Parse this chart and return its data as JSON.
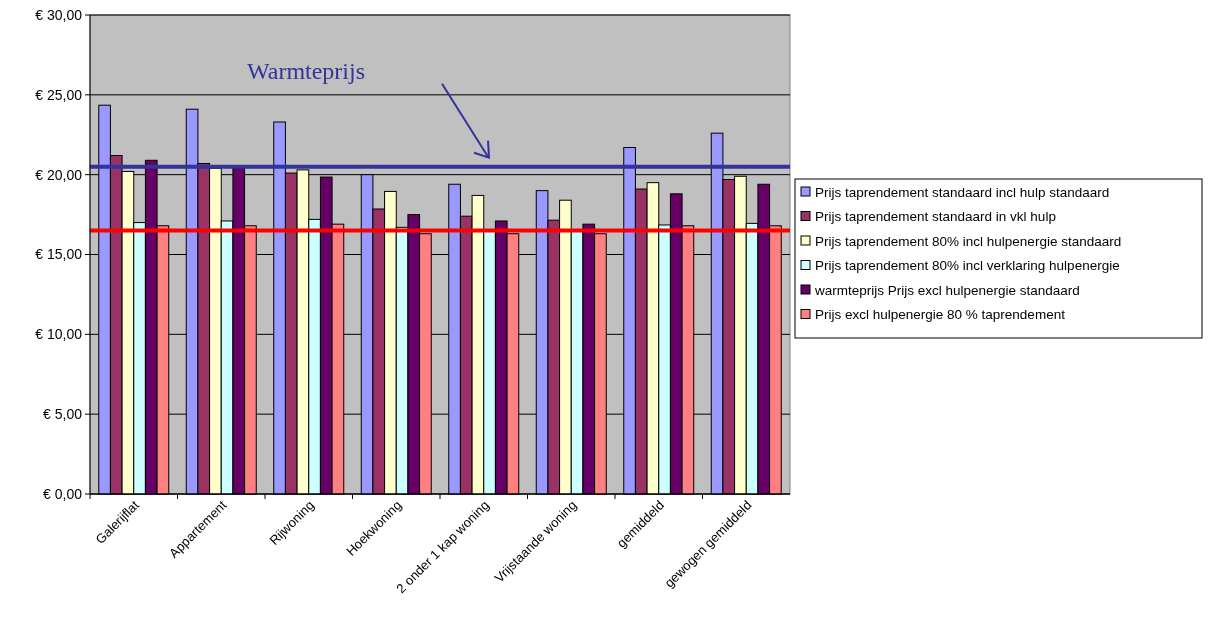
{
  "chart_data": {
    "type": "bar",
    "categories": [
      "Galerijflat",
      "Appartement",
      "Rijwoning",
      "Hoekwoning",
      "2 onder 1 kap woning",
      "Vrijstaande woning",
      "gemiddeld",
      "gewogen gemiddeld"
    ],
    "series": [
      {
        "name": "Prijs taprendement standaard incl hulp standaard",
        "color": "#9999ff",
        "values": [
          24.35,
          24.1,
          23.3,
          20.0,
          19.4,
          19.0,
          21.7,
          22.6
        ]
      },
      {
        "name": "Prijs taprendement standaard in vkl hulp",
        "color": "#993366",
        "values": [
          21.2,
          20.7,
          20.1,
          17.85,
          17.4,
          17.15,
          19.1,
          19.7
        ]
      },
      {
        "name": "Prijs taprendement 80% incl  hulpenergie standaard",
        "color": "#ffffcc",
        "values": [
          20.2,
          20.4,
          20.3,
          18.95,
          18.7,
          18.4,
          19.5,
          19.9
        ]
      },
      {
        "name": "Prijs taprendement 80% incl verklaring hulpenergie",
        "color": "#ccffff",
        "values": [
          17.0,
          17.1,
          17.2,
          16.7,
          16.5,
          16.5,
          16.85,
          16.95
        ]
      },
      {
        "name": "warmteprijs Prijs excl hulpenergie standaard",
        "color": "#660066",
        "values": [
          20.9,
          20.4,
          19.85,
          17.5,
          17.1,
          16.9,
          18.8,
          19.4
        ]
      },
      {
        "name": "Prijs excl hulpenergie 80 % taprendement",
        "color": "#ff8080",
        "values": [
          16.8,
          16.8,
          16.9,
          16.3,
          16.3,
          16.3,
          16.8,
          16.8
        ]
      }
    ],
    "ylim": [
      0,
      30
    ],
    "yticks": [
      {
        "value": 0,
        "label": "€ 0,00"
      },
      {
        "value": 5,
        "label": "€ 5,00"
      },
      {
        "value": 10,
        "label": "€ 10,00"
      },
      {
        "value": 15,
        "label": "€ 15,00"
      },
      {
        "value": 20,
        "label": "€ 20,00"
      },
      {
        "value": 25,
        "label": "€ 25,00"
      },
      {
        "value": 30,
        "label": "€ 30,00"
      }
    ],
    "grid": "y",
    "legend": "right",
    "ref_lines": [
      {
        "axis": "y",
        "value": 20.5,
        "label": "Warmteprijs",
        "color": "#333399"
      },
      {
        "axis": "y",
        "value": 16.5,
        "color": "#ff0000"
      }
    ]
  }
}
